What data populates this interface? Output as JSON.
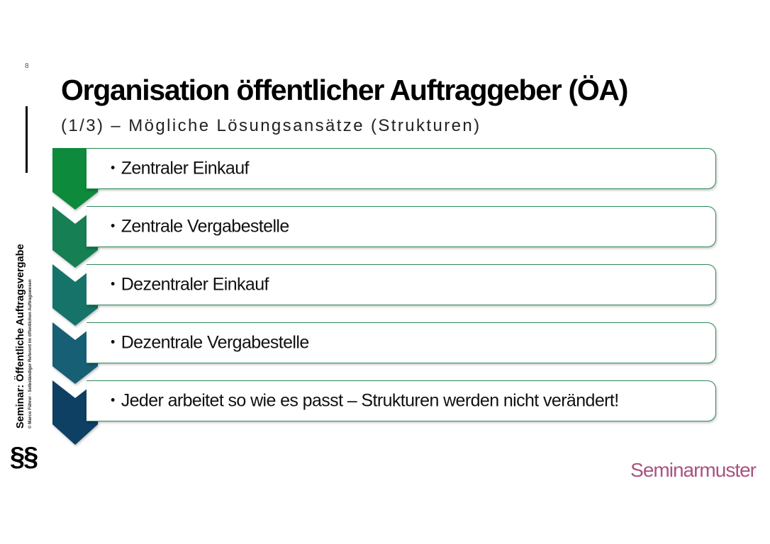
{
  "slide": {
    "page_number": "8",
    "title": "Organisation öffentlicher Auftraggeber (ÖA)",
    "subtitle": "(1/3) – Mögliche Lösungsansätze (Strukturen)"
  },
  "sidebar": {
    "seminar_title": "Seminar: Öffentliche Auftragsvergabe",
    "credit": "© Marco Führer - Selbständiger Referent im öffentlichen Auftragswesen",
    "symbol": "§§"
  },
  "process": {
    "bullet": "•",
    "items": [
      {
        "text": "Zentraler Einkauf",
        "color": "#0b8a3a"
      },
      {
        "text": "Zentrale Vergabestelle",
        "color": "#127f53"
      },
      {
        "text": "Dezentraler Einkauf",
        "color": "#17736b"
      },
      {
        "text": "Dezentrale Vergabestelle",
        "color": "#155f74"
      },
      {
        "text": "Jeder arbeitet so wie es passt – Strukturen werden nicht verändert!",
        "color": "#0f3f64"
      }
    ]
  },
  "brand": {
    "name": "Seminarmuster",
    "color": "#a9547e"
  }
}
